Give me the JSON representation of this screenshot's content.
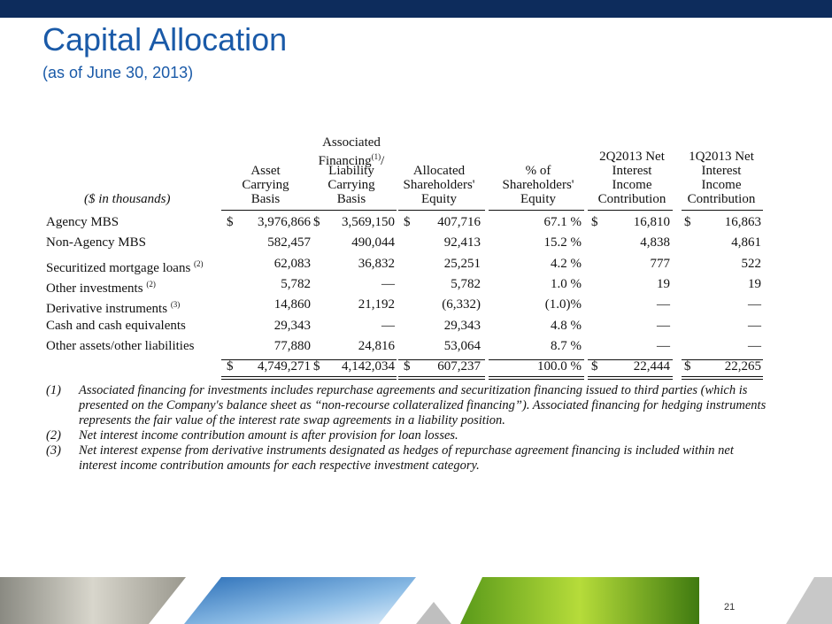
{
  "header": {
    "title": "Capital Allocation",
    "subtitle": "(as of June 30, 2013)"
  },
  "table": {
    "unit_label": "($ in thousands)",
    "columns": [
      {
        "lines": [
          "Asset",
          "Carrying",
          "Basis"
        ]
      },
      {
        "lines": [
          "Associated",
          {
            "text": "Financing",
            "note": "(1)",
            "after": "/"
          },
          "Liability",
          "Carrying",
          "Basis"
        ]
      },
      {
        "lines": [
          "Allocated",
          "Shareholders'",
          "Equity"
        ]
      },
      {
        "lines": [
          "% of",
          "Shareholders'",
          "Equity"
        ]
      },
      {
        "lines": [
          "2Q2013 Net",
          "Interest",
          "Income",
          "Contribution"
        ]
      },
      {
        "lines": [
          "1Q2013 Net",
          "Interest",
          "Income",
          "Contribution"
        ]
      }
    ],
    "rows": [
      {
        "label": "Agency MBS",
        "cells": [
          {
            "prefix": "$",
            "value": "3,976,866"
          },
          {
            "prefix": "$",
            "value": "3,569,150"
          },
          {
            "prefix": "$",
            "value": "407,716"
          },
          "67.1 %",
          {
            "prefix": "$",
            "value": "16,810"
          },
          {
            "prefix": "$",
            "value": "16,863"
          }
        ]
      },
      {
        "label": "Non-Agency MBS",
        "cells": [
          "582,457",
          "490,044",
          "92,413",
          "15.2 %",
          "4,838",
          "4,861"
        ]
      },
      {
        "label": "Securitized mortgage loans",
        "note": "(2)",
        "cells": [
          "62,083",
          "36,832",
          "25,251",
          "4.2 %",
          "777",
          "522"
        ]
      },
      {
        "label": "Other investments",
        "note": "(2)",
        "cells": [
          "5,782",
          "—",
          "5,782",
          "1.0 %",
          "19",
          "19"
        ]
      },
      {
        "label": "Derivative instruments",
        "note": "(3)",
        "cells": [
          "14,860",
          "21,192",
          "(6,332)",
          "(1.0)%",
          "—",
          "—"
        ]
      },
      {
        "label": "Cash and cash equivalents",
        "cells": [
          "29,343",
          "—",
          "29,343",
          "4.8 %",
          "—",
          "—"
        ]
      },
      {
        "label": "Other assets/other liabilities",
        "cells": [
          "77,880",
          "24,816",
          "53,064",
          "8.7 %",
          "—",
          "—"
        ]
      }
    ],
    "total": [
      {
        "prefix": "$",
        "value": "4,749,271"
      },
      {
        "prefix": "$",
        "value": "4,142,034"
      },
      {
        "prefix": "$",
        "value": "607,237"
      },
      "100.0 %",
      {
        "prefix": "$",
        "value": "22,444"
      },
      {
        "prefix": "$",
        "value": "22,265"
      }
    ]
  },
  "footnotes": [
    {
      "marker": "(1)",
      "text": "Associated financing for investments includes repurchase agreements and securitization financing issued to third parties (which is presented on the Company's balance sheet as “non-recourse collateralized financing”).  Associated financing for hedging instruments represents the fair value of the interest rate swap agreements in a liability position."
    },
    {
      "marker": "(2)",
      "text": "Net interest income contribution amount is after provision for loan losses."
    },
    {
      "marker": "(3)",
      "text": "Net interest expense from derivative instruments designated as hedges of repurchase agreement financing is included within net interest income contribution amounts for each respective investment category."
    }
  ],
  "page_number": "21"
}
